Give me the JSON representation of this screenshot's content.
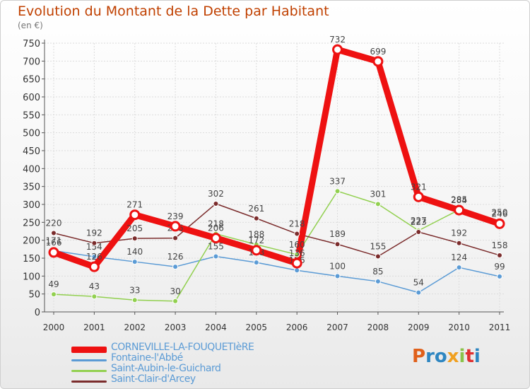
{
  "title": "Evolution du Montant de la Dette par Habitant",
  "unit": "(en €)",
  "logo": {
    "text": "Proxiti",
    "colors": [
      "#e0601a",
      "#2e86c1",
      "#2e86c1",
      "#f0a020",
      "#8bc34a",
      "#e03030",
      "#2e86c1"
    ]
  },
  "chart_data": {
    "type": "line",
    "title": "Evolution du Montant de la Dette par Habitant",
    "ylabel": "(en €)",
    "xlabel": "",
    "ylim": [
      0,
      750
    ],
    "yticks": [
      0,
      50,
      100,
      150,
      200,
      250,
      300,
      350,
      400,
      450,
      500,
      550,
      600,
      650,
      700,
      750
    ],
    "categories": [
      "2000",
      "2001",
      "2002",
      "2003",
      "2004",
      "2005",
      "2006",
      "2007",
      "2008",
      "2009",
      "2010",
      "2011"
    ],
    "grid": true,
    "legend_position": "bottom-left",
    "series": [
      {
        "name": "CORNEVILLE-LA-FOUQUETIèRE",
        "color": "#ee1111",
        "values": [
          166,
          126,
          271,
          239,
          206,
          172,
          136,
          732,
          699,
          321,
          284,
          246
        ]
      },
      {
        "name": "Fontaine-l'Abbé",
        "color": "#5b9bd5",
        "values": [
          171,
          154,
          140,
          126,
          155,
          138,
          116,
          100,
          85,
          54,
          124,
          99
        ]
      },
      {
        "name": "Saint-Aubin-le-Guichard",
        "color": "#92d050",
        "values": [
          49,
          43,
          33,
          30,
          218,
          188,
          160,
          337,
          301,
          227,
          285,
          250
        ]
      },
      {
        "name": "Saint-Clair-d'Arcey",
        "color": "#7b2c2c",
        "values": [
          220,
          192,
          205,
          206,
          302,
          261,
          218,
          189,
          155,
          223,
          192,
          158
        ]
      }
    ]
  }
}
